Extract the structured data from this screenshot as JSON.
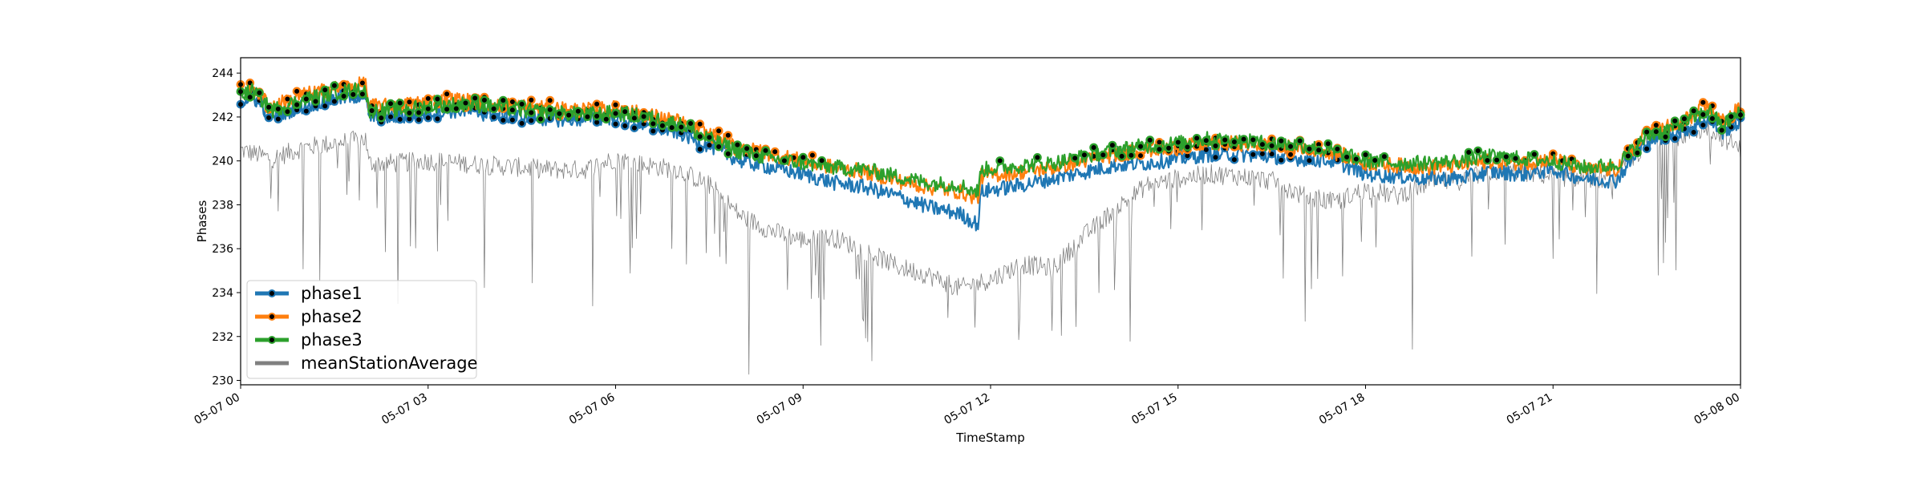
{
  "chart_data": {
    "type": "line",
    "title": "",
    "xlabel": "TimeStamp",
    "ylabel": "Phases",
    "xlim": [
      "2020-05-07 00:00",
      "2020-05-08 00:00"
    ],
    "ylim": [
      229.8,
      244.7
    ],
    "x_ticks": [
      "05-07 00",
      "05-07 03",
      "05-07 06",
      "05-07 09",
      "05-07 12",
      "05-07 15",
      "05-07 18",
      "05-07 21",
      "05-08 00"
    ],
    "y_ticks": [
      230,
      232,
      234,
      236,
      238,
      240,
      242,
      244
    ],
    "grid": false,
    "legend_position": "lower-left",
    "x_unit": "hours since 05-07 00",
    "series": [
      {
        "name": "phase1",
        "color": "#1f77b4",
        "marker": "black-dot-above-240",
        "x": [
          0,
          0.2,
          0.5,
          1.0,
          1.5,
          2.0,
          2.05,
          2.5,
          3.0,
          3.5,
          4.0,
          4.5,
          5.0,
          5.5,
          6.0,
          6.5,
          7.0,
          7.5,
          8.0,
          8.5,
          9.0,
          9.5,
          10.0,
          10.5,
          11.0,
          11.5,
          11.8,
          11.85,
          12.5,
          13.0,
          13.5,
          14.0,
          14.5,
          15.0,
          15.5,
          16.0,
          16.5,
          17.0,
          17.5,
          18.0,
          18.5,
          19.0,
          19.5,
          20.0,
          20.5,
          21.0,
          21.5,
          22.0,
          22.5,
          23.0,
          23.5,
          23.7,
          24.0
        ],
        "values": [
          242.7,
          242.9,
          242.0,
          242.5,
          242.8,
          243.0,
          242.0,
          242.0,
          242.2,
          242.3,
          242.1,
          242.0,
          241.9,
          241.9,
          242.0,
          241.6,
          241.3,
          240.7,
          240.0,
          239.7,
          239.4,
          239.0,
          238.8,
          238.4,
          237.9,
          237.6,
          237.1,
          238.6,
          238.9,
          239.2,
          239.5,
          239.8,
          239.9,
          240.1,
          240.3,
          240.3,
          240.2,
          240.1,
          240.0,
          239.4,
          239.3,
          239.2,
          239.2,
          239.5,
          239.4,
          239.6,
          239.2,
          239.1,
          240.9,
          241.3,
          241.9,
          241.3,
          241.8
        ]
      },
      {
        "name": "phase2",
        "color": "#ff7f0e",
        "marker": "black-dot-above-240",
        "x": [
          0,
          0.2,
          0.5,
          1.0,
          1.5,
          2.0,
          2.05,
          2.5,
          3.0,
          3.5,
          4.0,
          4.5,
          5.0,
          5.5,
          6.0,
          6.5,
          7.0,
          7.5,
          8.0,
          8.5,
          9.0,
          9.5,
          10.0,
          10.5,
          11.0,
          11.5,
          11.8,
          11.85,
          12.5,
          13.0,
          13.5,
          14.0,
          14.5,
          15.0,
          15.5,
          16.0,
          16.5,
          17.0,
          17.5,
          18.0,
          18.5,
          19.0,
          19.5,
          20.0,
          20.5,
          21.0,
          21.5,
          22.0,
          22.5,
          23.0,
          23.5,
          23.7,
          24.0
        ],
        "values": [
          243.2,
          243.3,
          242.5,
          243.0,
          243.3,
          243.5,
          242.5,
          242.5,
          242.7,
          242.8,
          242.6,
          242.5,
          242.4,
          242.3,
          242.4,
          242.1,
          241.8,
          241.2,
          240.6,
          240.3,
          240.0,
          239.7,
          239.5,
          239.1,
          238.8,
          238.6,
          238.3,
          239.3,
          239.5,
          239.7,
          240.0,
          240.3,
          240.5,
          240.6,
          240.8,
          240.8,
          240.7,
          240.6,
          240.4,
          239.9,
          239.8,
          239.7,
          239.8,
          240.0,
          239.9,
          240.1,
          239.6,
          239.6,
          241.3,
          241.7,
          242.5,
          241.8,
          242.4
        ]
      },
      {
        "name": "phase3",
        "color": "#2ca02c",
        "marker": "black-dot-above-240",
        "x": [
          0,
          0.2,
          0.5,
          1.0,
          1.5,
          2.0,
          2.05,
          2.5,
          3.0,
          3.5,
          4.0,
          4.5,
          5.0,
          5.5,
          6.0,
          6.5,
          7.0,
          7.5,
          8.0,
          8.5,
          9.0,
          9.5,
          10.0,
          10.5,
          11.0,
          11.5,
          11.8,
          11.85,
          12.5,
          13.0,
          13.5,
          14.0,
          14.5,
          15.0,
          15.5,
          16.0,
          16.5,
          17.0,
          17.5,
          18.0,
          18.5,
          19.0,
          19.5,
          20.0,
          20.5,
          21.0,
          21.5,
          22.0,
          22.5,
          23.0,
          23.5,
          23.7,
          24.0
        ],
        "values": [
          243.0,
          243.2,
          242.3,
          242.8,
          243.1,
          243.3,
          242.3,
          242.3,
          242.5,
          242.6,
          242.5,
          242.3,
          242.2,
          242.1,
          242.2,
          242.0,
          241.7,
          241.0,
          240.4,
          240.1,
          239.9,
          239.7,
          239.6,
          239.3,
          239.0,
          238.9,
          238.6,
          239.6,
          239.8,
          239.9,
          240.2,
          240.5,
          240.7,
          240.8,
          241.0,
          240.9,
          240.8,
          240.7,
          240.4,
          240.0,
          239.9,
          239.9,
          240.0,
          240.2,
          240.1,
          240.0,
          239.7,
          239.8,
          241.1,
          241.6,
          242.3,
          241.6,
          242.2
        ]
      },
      {
        "name": "meanStationAverage",
        "color": "#808080",
        "x": [
          0,
          0.5,
          1.0,
          1.5,
          2.0,
          2.05,
          2.5,
          3.0,
          3.5,
          4.0,
          4.5,
          5.0,
          5.5,
          6.0,
          6.5,
          7.0,
          7.5,
          8.0,
          8.5,
          9.0,
          9.5,
          10.0,
          10.5,
          11.0,
          11.5,
          12.0,
          12.5,
          13.0,
          13.5,
          14.0,
          14.5,
          15.0,
          15.5,
          16.0,
          16.5,
          17.0,
          17.5,
          18.0,
          18.5,
          19.0,
          19.5,
          20.0,
          20.5,
          21.0,
          21.5,
          22.0,
          22.5,
          23.0,
          23.5,
          24.0
        ],
        "values": [
          240.5,
          240.1,
          240.6,
          240.8,
          241.0,
          239.9,
          239.9,
          240.0,
          239.9,
          239.8,
          239.7,
          239.6,
          239.6,
          240.1,
          239.8,
          239.6,
          238.9,
          237.5,
          236.8,
          236.4,
          236.5,
          235.9,
          235.2,
          234.8,
          234.2,
          234.6,
          235.3,
          235.1,
          236.6,
          237.8,
          238.9,
          239.2,
          239.4,
          239.3,
          239.1,
          238.4,
          238.1,
          238.7,
          238.4,
          239.0,
          239.1,
          239.5,
          239.5,
          239.3,
          239.2,
          239.2,
          240.8,
          241.1,
          241.5,
          240.5
        ]
      }
    ]
  }
}
